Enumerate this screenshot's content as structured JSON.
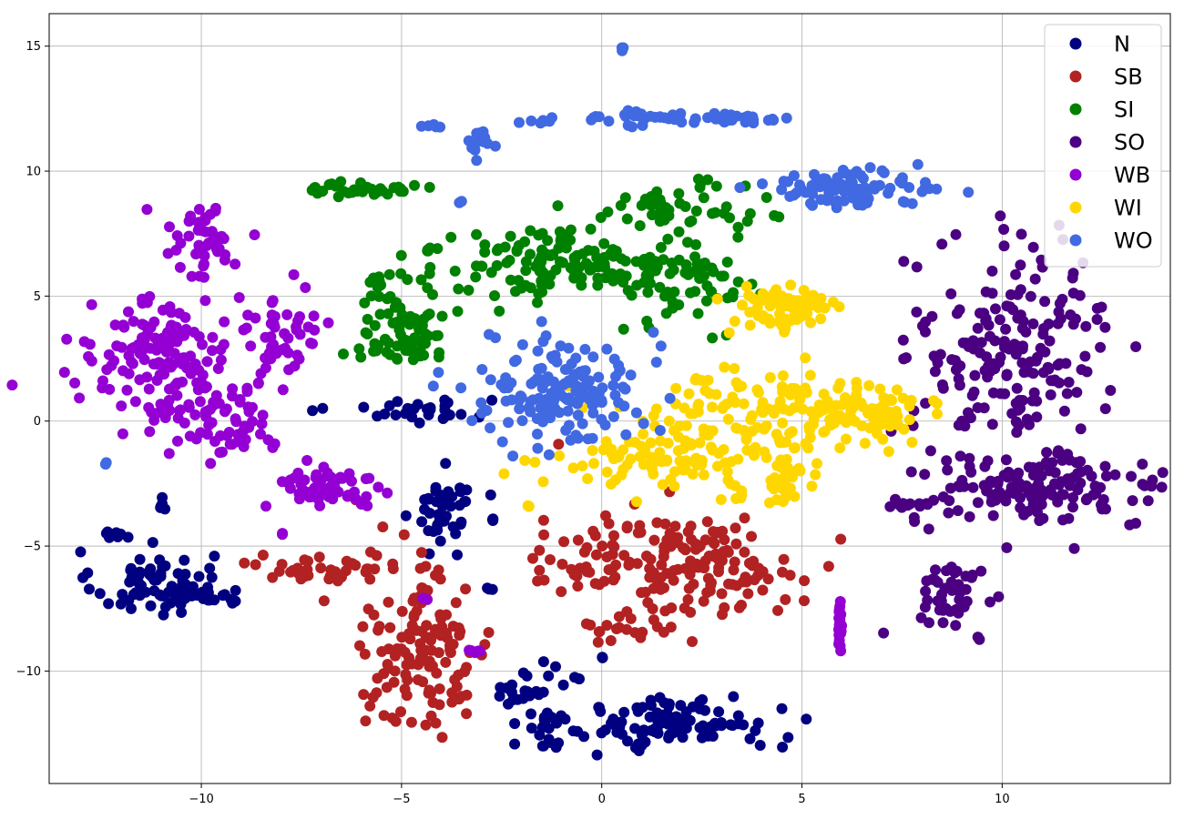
{
  "chart_data": {
    "type": "scatter",
    "title": "",
    "xlabel": "",
    "ylabel": "",
    "xlim": [
      -13.8,
      14.2
    ],
    "ylim": [
      -14.5,
      16.3
    ],
    "x_ticks": [
      -10,
      -5,
      0,
      5,
      10
    ],
    "x_tick_labels": [
      "−10",
      "−5",
      "0",
      "5",
      "10"
    ],
    "y_ticks": [
      -10,
      -5,
      0,
      5,
      10,
      15
    ],
    "y_tick_labels": [
      "−10",
      "−5",
      "0",
      "5",
      "10",
      "15"
    ],
    "grid": true,
    "legend_position": "top-right",
    "series": [
      {
        "name": "N",
        "color": "#000080",
        "clusters": [
          {
            "cx": -11.2,
            "cy": -6.5,
            "sx": 0.75,
            "sy": 0.65,
            "n": 70
          },
          {
            "cx": -9.8,
            "cy": -7.0,
            "sx": 0.5,
            "sy": 0.2,
            "n": 20
          },
          {
            "cx": -12.1,
            "cy": -4.5,
            "sx": 0.25,
            "sy": 0.12,
            "n": 8
          },
          {
            "cx": -11.0,
            "cy": -3.3,
            "sx": 0.05,
            "sy": 0.12,
            "n": 5
          },
          {
            "cx": -4.8,
            "cy": 0.45,
            "sx": 1.0,
            "sy": 0.25,
            "n": 30
          },
          {
            "cx": -3.9,
            "cy": -3.5,
            "sx": 0.35,
            "sy": 0.7,
            "n": 45
          },
          {
            "cx": -2.7,
            "cy": -3.9,
            "sx": 0.05,
            "sy": 0.05,
            "n": 3
          },
          {
            "cx": -2.8,
            "cy": -6.7,
            "sx": 0.05,
            "sy": 0.05,
            "n": 3
          },
          {
            "cx": -1.8,
            "cy": -11.0,
            "sx": 0.5,
            "sy": 0.9,
            "n": 30
          },
          {
            "cx": -1.3,
            "cy": -13.0,
            "sx": 0.15,
            "sy": 0.1,
            "n": 6
          },
          {
            "cx": 1.8,
            "cy": -12.1,
            "sx": 1.3,
            "sy": 0.55,
            "n": 110
          },
          {
            "cx": -0.6,
            "cy": -10.3,
            "sx": 0.05,
            "sy": 0.05,
            "n": 3
          },
          {
            "cx": 0.05,
            "cy": -9.5,
            "sx": 0.05,
            "sy": 0.05,
            "n": 2
          }
        ]
      },
      {
        "name": "SB",
        "color": "#b22222",
        "clusters": [
          {
            "cx": -4.5,
            "cy": -9.0,
            "sx": 0.9,
            "sy": 1.7,
            "n": 140
          },
          {
            "cx": -6.8,
            "cy": -5.9,
            "sx": 0.9,
            "sy": 0.3,
            "n": 35
          },
          {
            "cx": 2.5,
            "cy": -5.7,
            "sx": 1.2,
            "sy": 0.95,
            "n": 130
          },
          {
            "cx": -0.3,
            "cy": -5.6,
            "sx": 0.8,
            "sy": 0.9,
            "n": 45
          },
          {
            "cx": 0.7,
            "cy": -8.3,
            "sx": 0.6,
            "sy": 0.3,
            "n": 20
          },
          {
            "cx": -6.1,
            "cy": -3.2,
            "sx": 0.05,
            "sy": 0.05,
            "n": 1
          },
          {
            "cx": -1.0,
            "cy": -0.8,
            "sx": 0.05,
            "sy": 0.05,
            "n": 1
          }
        ]
      },
      {
        "name": "SI",
        "color": "#008000",
        "clusters": [
          {
            "cx": -6.0,
            "cy": 9.3,
            "sx": 0.6,
            "sy": 0.18,
            "n": 35
          },
          {
            "cx": -4.9,
            "cy": 4.3,
            "sx": 0.7,
            "sy": 0.9,
            "n": 70
          },
          {
            "cx": -5.3,
            "cy": 2.8,
            "sx": 0.5,
            "sy": 0.2,
            "n": 18
          },
          {
            "cx": -4.3,
            "cy": 6.8,
            "sx": 0.15,
            "sy": 0.1,
            "n": 6
          },
          {
            "cx": -1.5,
            "cy": 6.5,
            "sx": 1.1,
            "sy": 0.75,
            "n": 80
          },
          {
            "cx": 0.0,
            "cy": 6.0,
            "sx": 0.8,
            "sy": 0.5,
            "n": 50
          },
          {
            "cx": 1.8,
            "cy": 8.5,
            "sx": 0.9,
            "sy": 0.5,
            "n": 55
          },
          {
            "cx": 2.3,
            "cy": 5.5,
            "sx": 0.8,
            "sy": 0.8,
            "n": 60
          }
        ]
      },
      {
        "name": "SO",
        "color": "#4b0082",
        "clusters": [
          {
            "cx": 10.2,
            "cy": 3.0,
            "sx": 1.2,
            "sy": 2.0,
            "n": 190
          },
          {
            "cx": 10.9,
            "cy": -2.8,
            "sx": 1.6,
            "sy": 0.75,
            "n": 140
          },
          {
            "cx": 7.6,
            "cy": -3.3,
            "sx": 0.4,
            "sy": 0.1,
            "n": 12
          },
          {
            "cx": 8.8,
            "cy": -6.8,
            "sx": 0.45,
            "sy": 0.6,
            "n": 45
          },
          {
            "cx": 9.4,
            "cy": -8.7,
            "sx": 0.05,
            "sy": 0.05,
            "n": 2
          }
        ]
      },
      {
        "name": "WB",
        "color": "#9400d3",
        "clusters": [
          {
            "cx": -11.0,
            "cy": 2.5,
            "sx": 0.9,
            "sy": 1.2,
            "n": 150
          },
          {
            "cx": -10.0,
            "cy": 7.2,
            "sx": 0.5,
            "sy": 0.8,
            "n": 45
          },
          {
            "cx": -8.0,
            "cy": 3.5,
            "sx": 0.5,
            "sy": 1.0,
            "n": 45
          },
          {
            "cx": -9.5,
            "cy": 0.5,
            "sx": 0.8,
            "sy": 1.0,
            "n": 45
          },
          {
            "cx": -9.2,
            "cy": -0.9,
            "sx": 0.5,
            "sy": 0.4,
            "n": 20
          },
          {
            "cx": -7.0,
            "cy": -2.6,
            "sx": 0.7,
            "sy": 0.5,
            "n": 55
          },
          {
            "cx": -8.0,
            "cy": -4.5,
            "sx": 0.05,
            "sy": 0.05,
            "n": 2
          },
          {
            "cx": -4.4,
            "cy": -7.1,
            "sx": 0.05,
            "sy": 0.05,
            "n": 2
          },
          {
            "cx": -3.1,
            "cy": -9.2,
            "sx": 0.12,
            "sy": 0.05,
            "n": 5
          },
          {
            "cx": 5.95,
            "cy": -8.4,
            "sx": 0.02,
            "sy": 0.55,
            "n": 22
          }
        ]
      },
      {
        "name": "WI",
        "color": "#ffd700",
        "clusters": [
          {
            "cx": 4.6,
            "cy": 4.5,
            "sx": 0.75,
            "sy": 0.55,
            "n": 70
          },
          {
            "cx": 3.5,
            "cy": 0.2,
            "sx": 1.6,
            "sy": 0.9,
            "n": 130
          },
          {
            "cx": 1.5,
            "cy": -1.6,
            "sx": 1.3,
            "sy": 0.5,
            "n": 80
          },
          {
            "cx": 6.5,
            "cy": 0.6,
            "sx": 0.8,
            "sy": 0.5,
            "n": 45
          },
          {
            "cx": 4.5,
            "cy": -2.5,
            "sx": 0.6,
            "sy": 0.5,
            "n": 35
          },
          {
            "cx": 7.0,
            "cy": 0.0,
            "sx": 0.4,
            "sy": 0.6,
            "n": 20
          },
          {
            "cx": -1.8,
            "cy": -3.4,
            "sx": 0.05,
            "sy": 0.05,
            "n": 3
          }
        ]
      },
      {
        "name": "WO",
        "color": "#4169e1",
        "clusters": [
          {
            "cx": 0.5,
            "cy": 14.9,
            "sx": 0.03,
            "sy": 0.05,
            "n": 3
          },
          {
            "cx": 2.0,
            "cy": 12.1,
            "sx": 1.4,
            "sy": 0.15,
            "n": 45
          },
          {
            "cx": 3.6,
            "cy": 12.1,
            "sx": 0.4,
            "sy": 0.07,
            "n": 15
          },
          {
            "cx": -4.2,
            "cy": 11.8,
            "sx": 0.15,
            "sy": 0.03,
            "n": 5
          },
          {
            "cx": -3.0,
            "cy": 11.2,
            "sx": 0.15,
            "sy": 0.4,
            "n": 14
          },
          {
            "cx": -1.6,
            "cy": 12.0,
            "sx": 0.2,
            "sy": 0.05,
            "n": 6
          },
          {
            "cx": -3.5,
            "cy": 8.8,
            "sx": 0.03,
            "sy": 0.03,
            "n": 2
          },
          {
            "cx": 6.0,
            "cy": 9.3,
            "sx": 1.0,
            "sy": 0.35,
            "n": 90
          },
          {
            "cx": -0.9,
            "cy": 1.3,
            "sx": 1.0,
            "sy": 1.1,
            "n": 160
          },
          {
            "cx": -12.4,
            "cy": -1.7,
            "sx": 0.03,
            "sy": 0.03,
            "n": 2
          }
        ]
      }
    ]
  }
}
